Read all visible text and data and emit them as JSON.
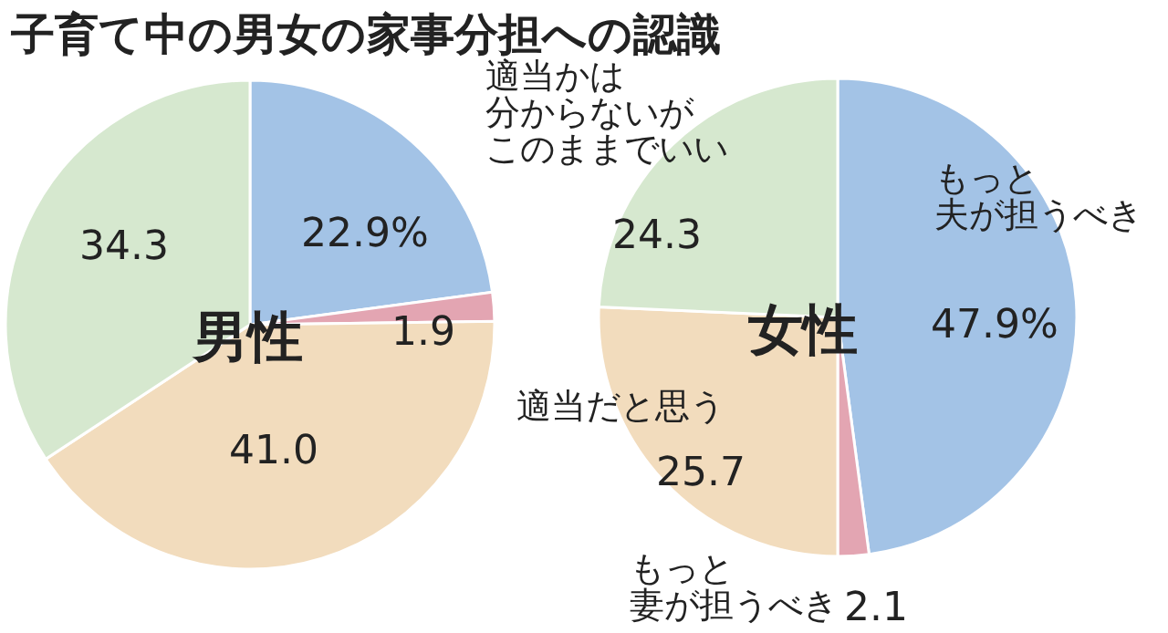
{
  "chart_data": [
    {
      "type": "pie",
      "title": "子育て中の男女の家事分担への認識",
      "subtitle": "男性",
      "categories": [
        null,
        null,
        null,
        null
      ],
      "values": [
        22.9,
        1.9,
        41.0,
        34.3
      ],
      "value_labels": [
        "22.9%",
        "1.9",
        "41.0",
        "34.3"
      ],
      "colors": [
        "#a3c3e6",
        "#e3a5b2",
        "#f2dcbd",
        "#d6e8cf"
      ]
    },
    {
      "type": "pie",
      "subtitle": "女性",
      "categories": [
        "もっと夫が担うべき",
        "もっと妻が担うべき",
        "適当だと思う",
        "適当かは分からないがこのままでいい"
      ],
      "values": [
        47.9,
        2.1,
        25.7,
        24.3
      ],
      "value_labels": [
        "47.9%",
        "2.1",
        "25.7",
        "24.3"
      ],
      "colors": [
        "#a3c3e6",
        "#e3a5b2",
        "#f2dcbd",
        "#d6e8cf"
      ]
    }
  ]
}
